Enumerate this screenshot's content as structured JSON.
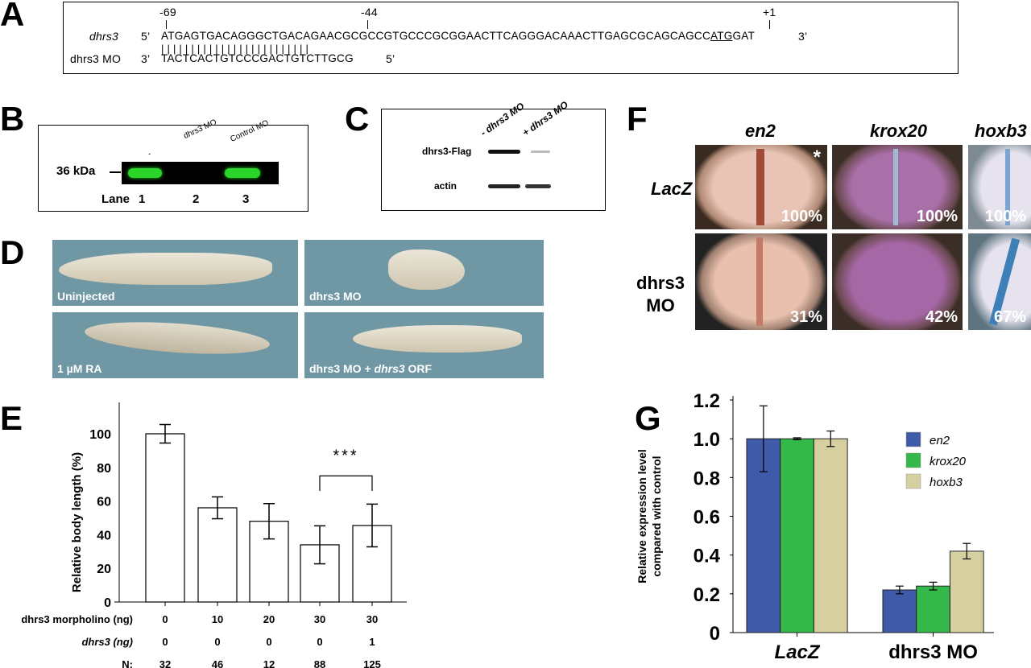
{
  "panels": {
    "a": "A",
    "b": "B",
    "c": "C",
    "d": "D",
    "e": "E",
    "f": "F",
    "g": "G"
  },
  "panel_a": {
    "positions": [
      "-69",
      "-44",
      "+1"
    ],
    "gene_label": "dhrs3",
    "gene_5": "5’",
    "gene_seq_pre": "ATGAGTGACAGGGCTGACAGAACGCGCCGTGCCCGCGGAACTTCAGGGACAAACTTGAGCGCAGCAGCC",
    "gene_seq_atg": "ATG",
    "gene_seq_post": "GAT",
    "gene_3": "3’",
    "pairing": "|||||||||||||||||||||||||",
    "mo_label": "dhrs3 MO",
    "mo_3": "3’",
    "mo_seq": "TACTCACTGTCCCGACTGTCTTGCG",
    "mo_5": "5’"
  },
  "panel_b": {
    "marker": "36 kDa",
    "lane_headers": [
      "-",
      "dhrs3 MO",
      "Control MO"
    ],
    "lane_label": "Lane",
    "lanes": [
      "1",
      "2",
      "3"
    ],
    "band_color": "#2bd62b"
  },
  "panel_c": {
    "lane_headers": [
      "- dhrs3 MO",
      "+ dhrs3 MO"
    ],
    "rows": [
      "dhrs3-Flag",
      "actin"
    ]
  },
  "panel_d": {
    "captions": [
      "Uninjected",
      "dhrs3 MO",
      "1 µM RA",
      "dhrs3 MO + dhrs3 ORF"
    ],
    "caption_last_parts": [
      "dhrs3 MO + ",
      "dhrs3",
      " ORF"
    ]
  },
  "panel_f": {
    "columns": [
      "en2",
      "krox20",
      "hoxb3"
    ],
    "rows": [
      {
        "label": "LacZ",
        "percents": [
          "100%",
          "100%",
          "100%"
        ]
      },
      {
        "label": "dhrs3 MO",
        "label_lines": [
          "dhrs3",
          "MO"
        ],
        "percents": [
          "31%",
          "42%",
          "67%"
        ]
      }
    ],
    "asterisk": "*"
  },
  "chart_data": [
    {
      "type": "bar",
      "panel": "E",
      "ylabel": "Relative body length (%)",
      "ylim": [
        0,
        120
      ],
      "yticks": [
        "0",
        "20",
        "40",
        "60",
        "80",
        "100"
      ],
      "values": [
        100,
        56,
        48,
        34,
        45.5
      ],
      "errors": [
        5.5,
        6.5,
        10.5,
        11.3,
        12.7
      ],
      "significance": {
        "between": [
          3,
          4
        ],
        "label": "***"
      },
      "table": [
        {
          "label": "dhrs3 morpholino (ng)",
          "values": [
            "0",
            "10",
            "20",
            "30",
            "30"
          ]
        },
        {
          "label": "dhrs3 (ng)",
          "values": [
            "0",
            "0",
            "0",
            "0",
            "1"
          ]
        },
        {
          "label": "N:",
          "values": [
            "32",
            "46",
            "12",
            "88",
            "125"
          ]
        }
      ],
      "bar_color": "#ffffff"
    },
    {
      "type": "bar",
      "panel": "G",
      "ylabel": [
        "Relative expression level",
        "compared with control"
      ],
      "ylim": [
        0,
        1.2
      ],
      "yticks": [
        "0",
        "0.2",
        "0.4",
        "0.6",
        "0.8",
        "1.0",
        "1.2"
      ],
      "categories": [
        "LacZ",
        "dhrs3 MO"
      ],
      "series": [
        {
          "name": "en2",
          "values": [
            1.0,
            0.22
          ],
          "errors": [
            0.17,
            0.02
          ],
          "color": "#3f5aa8"
        },
        {
          "name": "krox20",
          "values": [
            1.0,
            0.24
          ],
          "errors": [
            0.005,
            0.02
          ],
          "color": "#34b84a"
        },
        {
          "name": "hoxb3",
          "values": [
            1.0,
            0.42
          ],
          "errors": [
            0.04,
            0.04
          ],
          "color": "#d6cf9f"
        }
      ],
      "legend": "top-right"
    }
  ]
}
